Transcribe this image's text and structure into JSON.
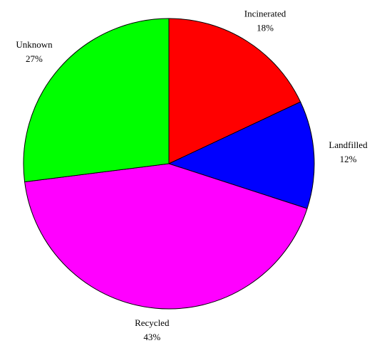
{
  "chart_data": {
    "type": "pie",
    "categories": [
      "Incinerated",
      "Landfilled",
      "Recycled",
      "Unknown"
    ],
    "values": [
      18,
      12,
      43,
      27
    ],
    "value_labels": [
      "18%",
      "12%",
      "43%",
      "27%"
    ],
    "colors": [
      "#ff0000",
      "#0000ff",
      "#ff00ff",
      "#00ff00"
    ]
  }
}
